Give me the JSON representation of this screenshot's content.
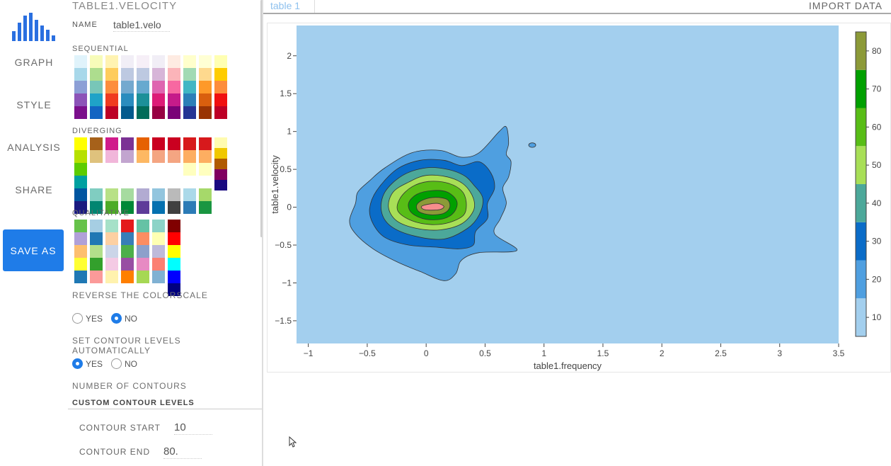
{
  "nav": {
    "items": [
      {
        "label": "GRAPH"
      },
      {
        "label": "STYLE"
      },
      {
        "label": "ANALYSIS"
      },
      {
        "label": "SHARE"
      }
    ],
    "save_label": "SAVE AS",
    "logo_color": "#2a6fe0"
  },
  "panel": {
    "title": "TABLE1.VELOCITY",
    "name_label": "NAME",
    "name_value": "table1.velo",
    "sequential_label": "SEQUENTIAL",
    "diverging_label": "DIVERGING",
    "qualitative_label": "QUALITATIVE",
    "reverse_label": "REVERSE THE COLORSCALE",
    "reverse_options": [
      "YES",
      "NO"
    ],
    "reverse_selected": "NO",
    "auto_levels_label": "SET CONTOUR LEVELS AUTOMATICALLY",
    "auto_options": [
      "YES",
      "NO"
    ],
    "auto_selected": "YES",
    "num_contours_label": "NUMBER OF CONTOURS",
    "custom_levels_label": "CUSTOM CONTOUR LEVELS",
    "contour_start_label": "CONTOUR START",
    "contour_start_value": "10",
    "contour_end_label": "CONTOUR END",
    "contour_end_value": "80."
  },
  "palettes": {
    "sequential": [
      [
        "#e0f3fb",
        "#a8d8ea",
        "#8c9fd6",
        "#8c53b8",
        "#7b0f8c"
      ],
      [
        "#f7fcb9",
        "#addd8e",
        "#78c6b8",
        "#1fa3c8",
        "#1264c2"
      ],
      [
        "#fff3b2",
        "#fecc5c",
        "#fd8d3c",
        "#f03b20",
        "#bd0026"
      ],
      [
        "#f1eef6",
        "#bdc9e1",
        "#74a9cf",
        "#2b8cbe",
        "#045a8d"
      ],
      [
        "#f6eff7",
        "#bdc9e1",
        "#67a9cf",
        "#1c9099",
        "#016c59"
      ],
      [
        "#f1eef6",
        "#d7b5d8",
        "#df65b0",
        "#dd1c77",
        "#980043"
      ],
      [
        "#feebe2",
        "#fbb4b9",
        "#f768a1",
        "#c51b8a",
        "#7a0177"
      ],
      [
        "#ffffcc",
        "#a1dab4",
        "#41b6c4",
        "#2c7fb8",
        "#253494"
      ],
      [
        "#ffffd4",
        "#fed98e",
        "#fe9929",
        "#d95f0e",
        "#993404"
      ],
      [
        "#ffffb2",
        "#fecc00",
        "#fd8d3c",
        "#f01010",
        "#bd0026"
      ]
    ],
    "diverging": [
      [
        "#ffff00",
        "#b6e000",
        "#5ccc00",
        "#00a0a0",
        "#0055a0",
        "#1a1a80"
      ],
      [
        "#a6611a",
        "#dfc27d",
        "",
        "",
        "#80cdc1",
        "#018571"
      ],
      [
        "#d01c8b",
        "#f1b6da",
        "",
        "",
        "#b8e186",
        "#4dac26"
      ],
      [
        "#7b3294",
        "#c2a5cf",
        "",
        "",
        "#a6dba0",
        "#008837"
      ],
      [
        "#e66101",
        "#fdb863",
        "",
        "",
        "#b2abd2",
        "#5e3c99"
      ],
      [
        "#ca0020",
        "#f4a582",
        "",
        "",
        "#92c5de",
        "#0571b0"
      ],
      [
        "#ca0020",
        "#f4a582",
        "",
        "",
        "#bababa",
        "#404040"
      ],
      [
        "#d7191c",
        "#fdae61",
        "#ffffbf",
        "",
        "#abd9e9",
        "#2c7bb6"
      ],
      [
        "#d7191c",
        "#fdae61",
        "#ffffbf",
        "",
        "#a6d96a",
        "#1a9641"
      ],
      [
        "#fffbb0",
        "#f0c800",
        "#b05a00",
        "#800060",
        "#1a0a80"
      ]
    ],
    "qualitative": [
      [
        "#66c24a",
        "#b0a0d8",
        "#fdbf6f",
        "#ffff33",
        "#1f78b4"
      ],
      [
        "#a6cee3",
        "#1f78b4",
        "#b2df8a",
        "#33a02c",
        "#fb9a99"
      ],
      [
        "#a6e1c8",
        "#fdd0a2",
        "#cbd5e8",
        "#f4cae4",
        "#fff2ae"
      ],
      [
        "#e41a1c",
        "#377eb8",
        "#4daf4a",
        "#984ea3",
        "#ff7f00"
      ],
      [
        "#66c2a5",
        "#fc8d62",
        "#8da0cb",
        "#e78ac3",
        "#a6d854"
      ],
      [
        "#8dd3c7",
        "#ffffb3",
        "#bebada",
        "#fb8072",
        "#80b1d3"
      ],
      [
        "#800000",
        "#ff0000",
        "#ffff00",
        "#00ffff",
        "#0000ff",
        "#000080"
      ]
    ]
  },
  "topbar": {
    "tab_label": "table 1",
    "import_label": "IMPORT DATA"
  },
  "chart_data": {
    "type": "contour",
    "xlabel": "table1.frequency",
    "ylabel": "table1.velocity",
    "xlim": [
      -1.1,
      3.5
    ],
    "ylim": [
      -1.8,
      2.4
    ],
    "xticks": [
      -1,
      -0.5,
      0,
      0.5,
      1,
      1.5,
      2,
      2.5,
      3,
      3.5
    ],
    "xtick_labels": [
      "−1",
      "−0.5",
      "0",
      "0.5",
      "1",
      "1.5",
      "2",
      "2.5",
      "3",
      "3.5"
    ],
    "yticks": [
      -1.5,
      -1,
      -0.5,
      0,
      0.5,
      1,
      1.5,
      2
    ],
    "ytick_labels": [
      "−1.5",
      "−1",
      "−0.5",
      "0",
      "0.5",
      "1",
      "1.5",
      "2"
    ],
    "contour_start": 10,
    "contour_end": 80,
    "contour_step": 10,
    "colorbar_ticks": [
      10,
      20,
      30,
      40,
      50,
      60,
      70,
      80
    ],
    "colorbar_tick_labels": [
      "10",
      "20",
      "30",
      "40",
      "50",
      "60",
      "70",
      "80"
    ],
    "colorbar_range": [
      5,
      85
    ],
    "colorscale": [
      "#a3cfee",
      "#4f9fe0",
      "#0a6cc8",
      "#4ca89a",
      "#a8df57",
      "#58bd16",
      "#00a000",
      "#8c9a38",
      "#f78d8d"
    ],
    "peak": [
      0.05,
      0.0
    ],
    "levels": [
      {
        "level": 10,
        "color": "#4f9fe0",
        "points": [
          [
            -0.35,
            0.52
          ],
          [
            -0.12,
            0.72
          ],
          [
            0.12,
            0.75
          ],
          [
            0.3,
            0.66
          ],
          [
            0.45,
            0.72
          ],
          [
            0.62,
            1.0
          ],
          [
            0.68,
            1.06
          ],
          [
            0.7,
            0.85
          ],
          [
            0.68,
            0.7
          ],
          [
            0.72,
            0.6
          ],
          [
            0.7,
            0.4
          ],
          [
            0.65,
            0.25
          ],
          [
            0.68,
            0.05
          ],
          [
            0.63,
            -0.15
          ],
          [
            0.58,
            -0.35
          ],
          [
            0.77,
            -0.57
          ],
          [
            0.45,
            -0.6
          ],
          [
            0.3,
            -0.7
          ],
          [
            0.25,
            -0.88
          ],
          [
            0.15,
            -0.97
          ],
          [
            -0.05,
            -0.85
          ],
          [
            -0.25,
            -0.72
          ],
          [
            -0.45,
            -0.55
          ],
          [
            -0.6,
            -0.35
          ],
          [
            -0.65,
            -0.18
          ],
          [
            -0.6,
            0.05
          ],
          [
            -0.58,
            0.2
          ],
          [
            -0.48,
            0.35
          ]
        ]
      },
      {
        "level": 20,
        "color": "#0a6cc8",
        "points": [
          [
            -0.25,
            0.5
          ],
          [
            -0.05,
            0.62
          ],
          [
            0.15,
            0.62
          ],
          [
            0.3,
            0.55
          ],
          [
            0.45,
            0.6
          ],
          [
            0.55,
            0.45
          ],
          [
            0.58,
            0.25
          ],
          [
            0.52,
            0.05
          ],
          [
            0.52,
            -0.15
          ],
          [
            0.42,
            -0.32
          ],
          [
            0.4,
            -0.5
          ],
          [
            0.28,
            -0.55
          ],
          [
            0.1,
            -0.53
          ],
          [
            -0.15,
            -0.5
          ],
          [
            -0.35,
            -0.4
          ],
          [
            -0.45,
            -0.22
          ],
          [
            -0.48,
            -0.02
          ],
          [
            -0.42,
            0.22
          ]
        ]
      },
      {
        "level": 30,
        "color": "#4ca89a",
        "points": [
          [
            -0.2,
            0.42
          ],
          [
            0.0,
            0.52
          ],
          [
            0.18,
            0.5
          ],
          [
            0.32,
            0.42
          ],
          [
            0.4,
            0.3
          ],
          [
            0.48,
            0.12
          ],
          [
            0.45,
            -0.1
          ],
          [
            0.35,
            -0.28
          ],
          [
            0.15,
            -0.42
          ],
          [
            -0.1,
            -0.38
          ],
          [
            -0.3,
            -0.25
          ],
          [
            -0.38,
            -0.05
          ],
          [
            -0.35,
            0.2
          ]
        ]
      },
      {
        "level": 40,
        "color": "#a8df57",
        "points": [
          [
            -0.15,
            0.33
          ],
          [
            0.0,
            0.42
          ],
          [
            0.18,
            0.4
          ],
          [
            0.32,
            0.3
          ],
          [
            0.4,
            0.12
          ],
          [
            0.4,
            -0.05
          ],
          [
            0.3,
            -0.22
          ],
          [
            0.12,
            -0.3
          ],
          [
            -0.08,
            -0.28
          ],
          [
            -0.25,
            -0.18
          ],
          [
            -0.32,
            0.0
          ],
          [
            -0.28,
            0.2
          ]
        ]
      },
      {
        "level": 50,
        "color": "#58bd16",
        "points": [
          [
            -0.12,
            0.27
          ],
          [
            0.02,
            0.34
          ],
          [
            0.18,
            0.32
          ],
          [
            0.3,
            0.22
          ],
          [
            0.34,
            0.07
          ],
          [
            0.32,
            -0.1
          ],
          [
            0.2,
            -0.2
          ],
          [
            0.05,
            -0.23
          ],
          [
            -0.12,
            -0.18
          ],
          [
            -0.24,
            -0.05
          ],
          [
            -0.22,
            0.12
          ]
        ]
      },
      {
        "level": 60,
        "color": "#00a000",
        "points": [
          [
            -0.08,
            0.17
          ],
          [
            0.05,
            0.22
          ],
          [
            0.18,
            0.2
          ],
          [
            0.26,
            0.08
          ],
          [
            0.24,
            -0.06
          ],
          [
            0.15,
            -0.15
          ],
          [
            0.0,
            -0.16
          ],
          [
            -0.12,
            -0.08
          ],
          [
            -0.15,
            0.05
          ]
        ]
      },
      {
        "level": 70,
        "color": "#8c9a38",
        "points": [
          [
            -0.02,
            0.1
          ],
          [
            0.08,
            0.13
          ],
          [
            0.18,
            0.1
          ],
          [
            0.2,
            0.0
          ],
          [
            0.15,
            -0.08
          ],
          [
            0.04,
            -0.1
          ],
          [
            -0.06,
            -0.06
          ],
          [
            -0.08,
            0.03
          ]
        ]
      },
      {
        "level": 80,
        "color": "#f78d8d",
        "points": [
          [
            -0.04,
            0.01
          ],
          [
            0.02,
            0.04
          ],
          [
            0.1,
            0.05
          ],
          [
            0.15,
            0.01
          ],
          [
            0.12,
            -0.03
          ],
          [
            0.04,
            -0.04
          ],
          [
            -0.02,
            -0.03
          ]
        ]
      }
    ],
    "islands": [
      {
        "level": 10,
        "color": "#4f9fe0",
        "center": [
          0.9,
          0.82
        ],
        "rx": 0.03,
        "ry": 0.03
      }
    ]
  }
}
